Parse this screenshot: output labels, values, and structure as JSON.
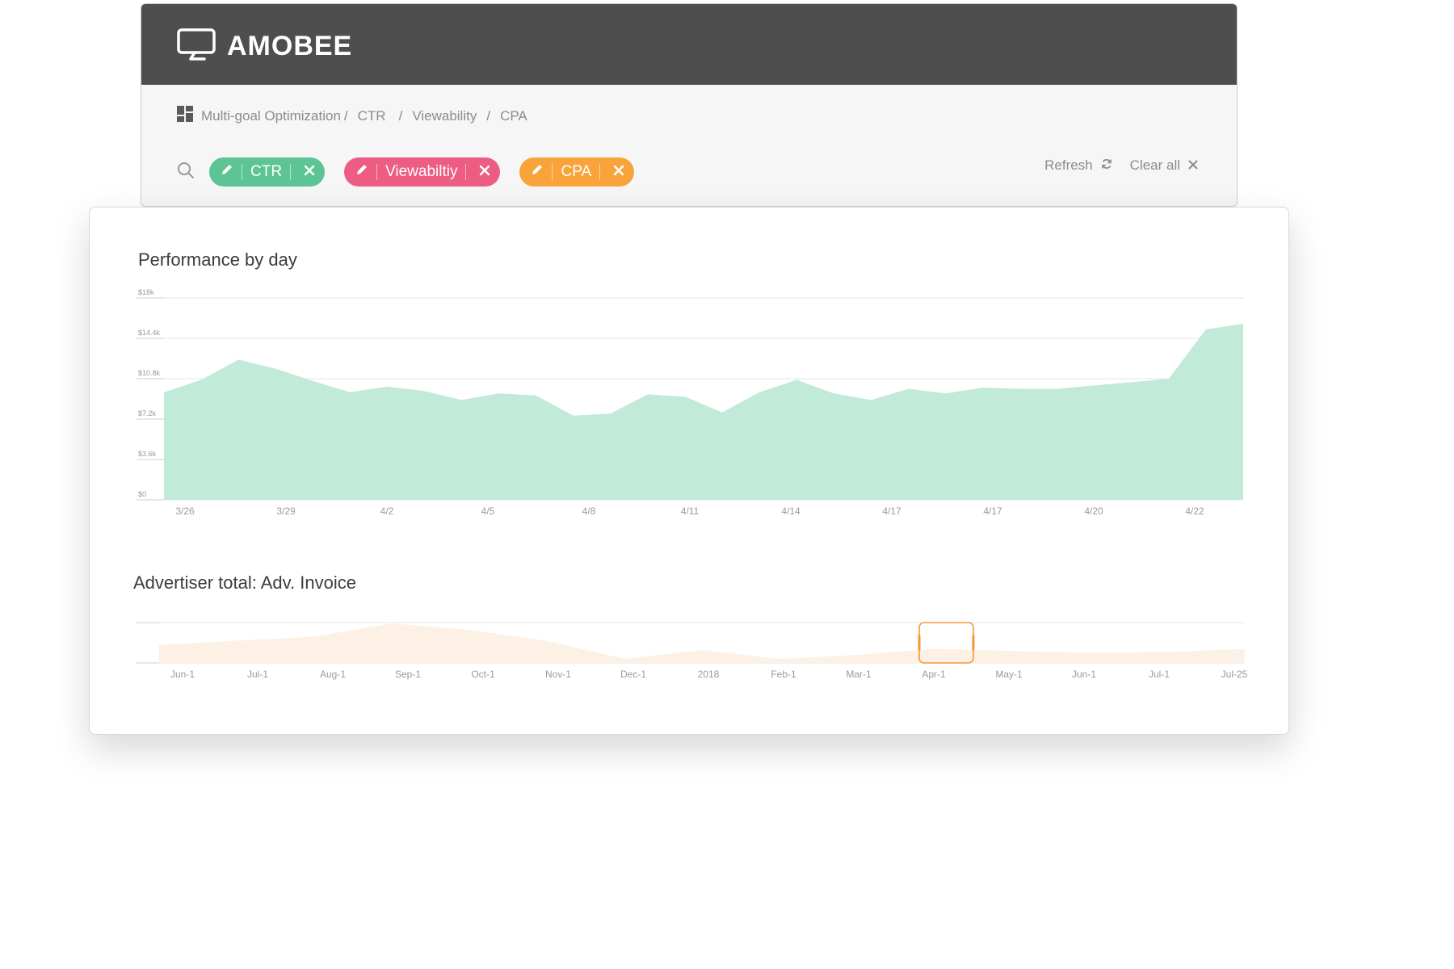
{
  "header": {
    "brand": "AMOBEE"
  },
  "breadcrumb": {
    "items": [
      "Multi-goal Optimization",
      "CTR",
      "Viewability",
      "CPA"
    ],
    "separator": "/"
  },
  "filters": {
    "chips": [
      {
        "label": "CTR",
        "color": "#5cc495"
      },
      {
        "label": "Viewabiltiy",
        "color": "#ec5c83"
      },
      {
        "label": "CPA",
        "color": "#f8a43a"
      }
    ]
  },
  "actions": {
    "refresh": "Refresh",
    "clear_all": "Clear all"
  },
  "icons": {
    "logo": "monitor-logo-icon",
    "breadcrumb": "dashboard-grid-icon",
    "search": "search-icon",
    "edit": "pencil-icon",
    "remove": "close-icon",
    "refresh": "refresh-icon",
    "clear": "close-icon"
  },
  "chart_data": [
    {
      "type": "area",
      "title": "Performance by day",
      "color": "#c2ead8",
      "grid": true,
      "yticks": [
        "$0",
        "$3.6k",
        "$7.2k",
        "$10.8k",
        "$14.4k",
        "$18k"
      ],
      "ylim": [
        0,
        18000
      ],
      "xticks": [
        "3/26",
        "3/29",
        "4/2",
        "4/5",
        "4/8",
        "4/11",
        "4/14",
        "4/17",
        "4/17",
        "4/20",
        "4/22"
      ],
      "values": [
        9600,
        10700,
        12500,
        11700,
        10600,
        9600,
        10100,
        9700,
        8900,
        9500,
        9300,
        7500,
        7700,
        9400,
        9200,
        7800,
        9600,
        10700,
        9500,
        8900,
        9900,
        9500,
        10000,
        9900,
        9900,
        10200,
        10500,
        10800,
        15200,
        15700
      ]
    },
    {
      "type": "area",
      "title": "Advertiser total: Adv. Invoice",
      "color": "#fdf1e6",
      "selection_color": "#f29a3a",
      "grid": true,
      "xticks": [
        "Jun-1",
        "Jul-1",
        "Aug-1",
        "Sep-1",
        "Oct-1",
        "Nov-1",
        "Dec-1",
        "2018",
        "Feb-1",
        "Mar-1",
        "Apr-1",
        "May-1",
        "Jun-1",
        "Jul-1",
        "Jul-25"
      ],
      "values": [
        0.45,
        0.55,
        0.65,
        0.98,
        0.82,
        0.55,
        0.1,
        0.32,
        0.1,
        0.2,
        0.35,
        0.3,
        0.25,
        0.27,
        0.35
      ],
      "selected_range": [
        "Apr-1",
        "May-1"
      ]
    }
  ]
}
